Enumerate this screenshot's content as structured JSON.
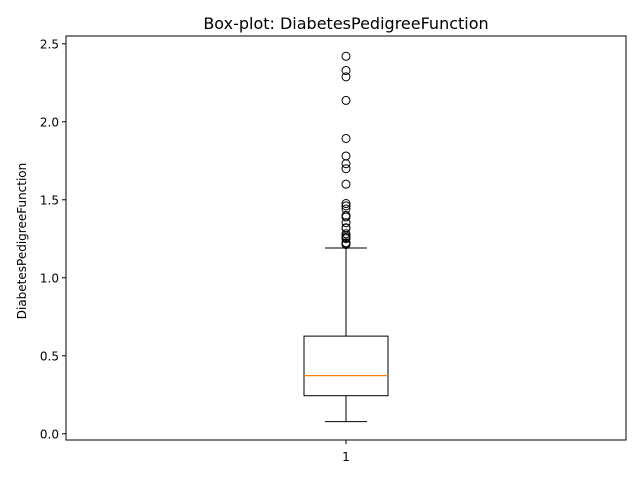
{
  "chart_data": {
    "type": "box",
    "title": "Box-plot: DiabetesPedigreeFunction",
    "xlabel": "",
    "ylabel": "DiabetesPedigreeFunction",
    "categories": [
      "1"
    ],
    "ylim": [
      -0.04,
      2.55
    ],
    "yticks": [
      0.0,
      0.5,
      1.0,
      1.5,
      2.0,
      2.5
    ],
    "ytick_labels": [
      "0.0",
      "0.5",
      "1.0",
      "1.5",
      "2.0",
      "2.5"
    ],
    "grid": false,
    "box": {
      "whisker_low": 0.078,
      "q1": 0.244,
      "median": 0.3725,
      "q3": 0.626,
      "whisker_high": 1.191
    },
    "outliers": [
      2.42,
      2.329,
      2.288,
      2.137,
      1.893,
      1.781,
      1.731,
      1.699,
      1.6,
      1.476,
      1.461,
      1.441,
      1.4,
      1.39,
      1.353,
      1.321,
      1.318,
      1.282,
      1.268,
      1.258,
      1.251,
      1.224,
      1.222,
      1.213
    ],
    "colors": {
      "median": "#ff7f0e",
      "box": "#000000",
      "outlier_edge": "#000000"
    }
  }
}
